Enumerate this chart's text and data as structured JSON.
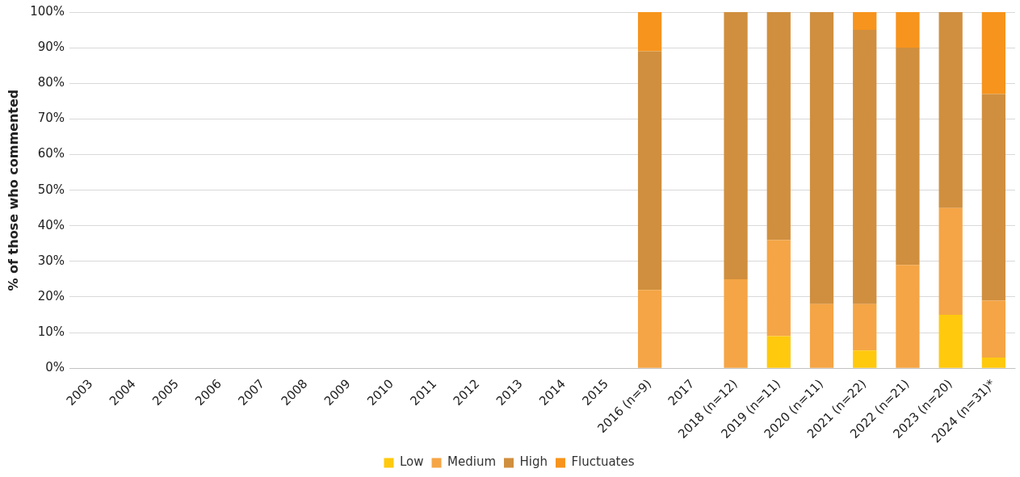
{
  "chart_data": {
    "type": "bar",
    "stacked": true,
    "ylabel": "% of those who commented",
    "categories": [
      "2003",
      "2004",
      "2005",
      "2006",
      "2007",
      "2008",
      "2009",
      "2010",
      "2011",
      "2012",
      "2013",
      "2014",
      "2015",
      "2016 (n=9)",
      "2017",
      "2018 (n=12)",
      "2019 (n=11)",
      "2020 (n=11)",
      "2021 (n=22)",
      "2022 (n=21)",
      "2023 (n=20)",
      "2024 (n=31)*"
    ],
    "series": [
      {
        "name": "Low",
        "color": "#ffc90e",
        "values": [
          null,
          null,
          null,
          null,
          null,
          null,
          null,
          null,
          null,
          null,
          null,
          null,
          null,
          0,
          null,
          0,
          9,
          0,
          5,
          0,
          15,
          3
        ]
      },
      {
        "name": "Medium",
        "color": "#f5a545",
        "values": [
          null,
          null,
          null,
          null,
          null,
          null,
          null,
          null,
          null,
          null,
          null,
          null,
          null,
          22,
          null,
          25,
          27,
          18,
          13,
          29,
          30,
          16
        ]
      },
      {
        "name": "High",
        "color": "#d08f3e",
        "values": [
          null,
          null,
          null,
          null,
          null,
          null,
          null,
          null,
          null,
          null,
          null,
          null,
          null,
          67,
          null,
          75,
          64,
          82,
          77,
          61,
          55,
          58
        ]
      },
      {
        "name": "Fluctuates",
        "color": "#f7941d",
        "values": [
          null,
          null,
          null,
          null,
          null,
          null,
          null,
          null,
          null,
          null,
          null,
          null,
          null,
          11,
          null,
          0,
          0,
          0,
          5,
          10,
          0,
          23
        ]
      }
    ],
    "ylim": [
      0,
      100
    ],
    "yticks": [
      {
        "value": 0,
        "label": "0%"
      },
      {
        "value": 10,
        "label": "10%"
      },
      {
        "value": 20,
        "label": "20%"
      },
      {
        "value": 30,
        "label": "30%"
      },
      {
        "value": 40,
        "label": "40%"
      },
      {
        "value": 50,
        "label": "50%"
      },
      {
        "value": 60,
        "label": "60%"
      },
      {
        "value": 70,
        "label": "70%"
      },
      {
        "value": 80,
        "label": "80%"
      },
      {
        "value": 90,
        "label": "90%"
      },
      {
        "value": 100,
        "label": "100%"
      }
    ],
    "grid": "y",
    "legend": "bottom"
  }
}
